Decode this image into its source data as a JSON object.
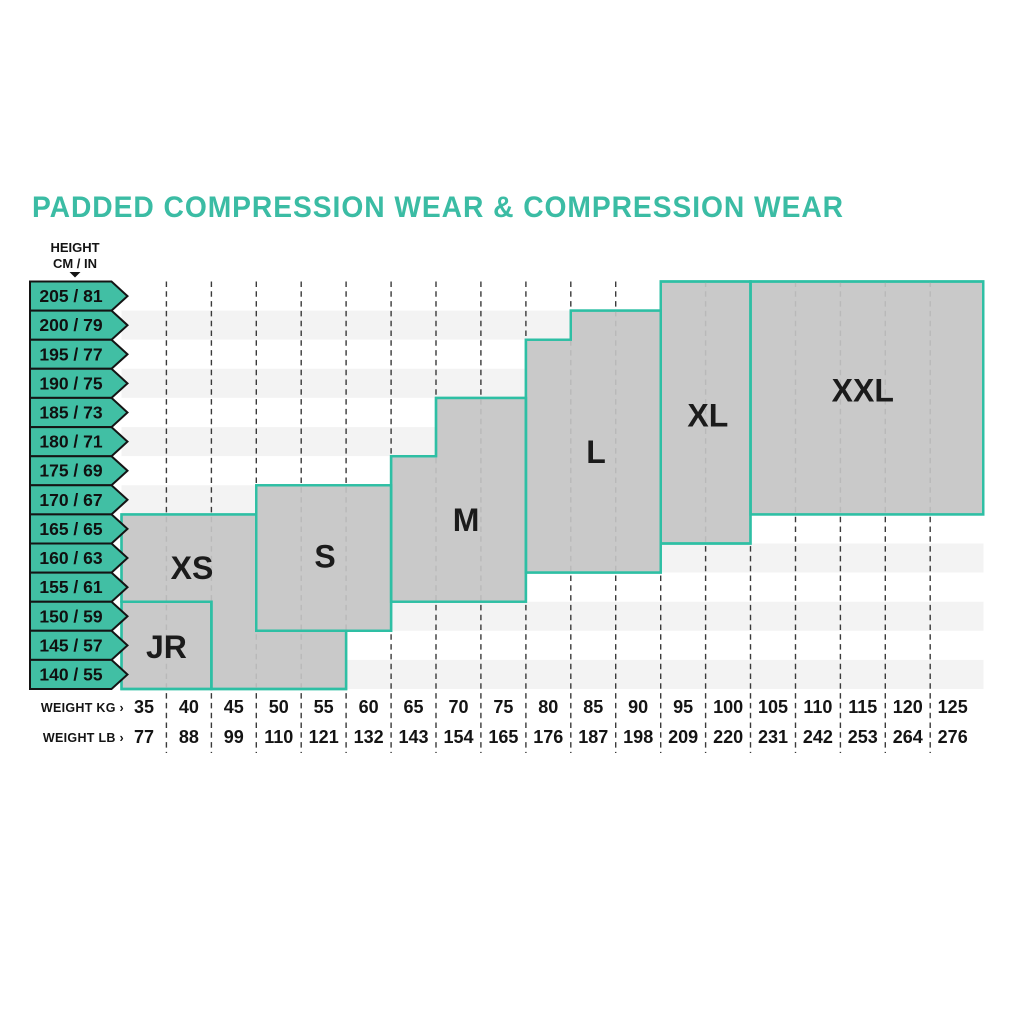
{
  "colors": {
    "teal_border": "#2ebfa4",
    "badge_fill": "#41bfa4",
    "title_teal": "#3bbca4",
    "region_fill": "#c9c9c9",
    "stripe": "#f3f3f3",
    "grid_dark": "#3a3a3a",
    "grid_light": "#b9b9b9",
    "badge_outline": "#141414"
  },
  "chart_data": {
    "type": "size-region-chart",
    "title": "PADDED COMPRESSION WEAR & COMPRESSION WEAR",
    "legend_position": "none",
    "grid": "dashed-vertical",
    "y_axis": {
      "title_line1": "HEIGHT",
      "title_line2": "CM / IN",
      "labels": [
        "205 / 81",
        "200 / 79",
        "195 / 77",
        "190 / 75",
        "185 / 73",
        "180 / 71",
        "175 / 69",
        "170 / 67",
        "165 / 65",
        "160 / 63",
        "155 / 61",
        "150 / 59",
        "145 / 57",
        "140 / 55"
      ]
    },
    "x_axis": {
      "kg_row_label": "WEIGHT KG ›",
      "lb_row_label": "WEIGHT LB ›",
      "kg": [
        35,
        40,
        45,
        50,
        55,
        60,
        65,
        70,
        75,
        80,
        85,
        90,
        95,
        100,
        105,
        110,
        115,
        120,
        125
      ],
      "lb": [
        77,
        88,
        99,
        110,
        121,
        132,
        143,
        154,
        165,
        176,
        187,
        198,
        209,
        220,
        231,
        242,
        253,
        264,
        276
      ]
    },
    "regions": [
      {
        "label": "JR",
        "polygon": [
          [
            0,
            11
          ],
          [
            2,
            11
          ],
          [
            2,
            14
          ],
          [
            0,
            14
          ]
        ],
        "label_at": [
          1.0,
          12.55
        ]
      },
      {
        "label": "XS",
        "polygon": [
          [
            0,
            8
          ],
          [
            3,
            8
          ],
          [
            3,
            12
          ],
          [
            5,
            12
          ],
          [
            5,
            14
          ],
          [
            2,
            14
          ],
          [
            2,
            11
          ],
          [
            0,
            11
          ]
        ],
        "label_at": [
          1.57,
          9.85
        ]
      },
      {
        "label": "S",
        "polygon": [
          [
            3,
            7
          ],
          [
            6,
            7
          ],
          [
            6,
            12
          ],
          [
            3,
            12
          ]
        ],
        "label_at": [
          4.53,
          9.45
        ]
      },
      {
        "label": "M",
        "polygon": [
          [
            6,
            6
          ],
          [
            7,
            6
          ],
          [
            7,
            4
          ],
          [
            9,
            4
          ],
          [
            9,
            11
          ],
          [
            6,
            11
          ]
        ],
        "label_at": [
          7.67,
          8.2
        ]
      },
      {
        "label": "L",
        "polygon": [
          [
            9,
            2
          ],
          [
            10,
            2
          ],
          [
            10,
            1
          ],
          [
            12,
            1
          ],
          [
            12,
            10
          ],
          [
            9,
            10
          ]
        ],
        "label_at": [
          10.56,
          5.85
        ]
      },
      {
        "label": "XL",
        "polygon": [
          [
            12,
            0
          ],
          [
            14,
            0
          ],
          [
            14,
            9
          ],
          [
            12,
            9
          ]
        ],
        "label_at": [
          13.05,
          4.6
        ]
      },
      {
        "label": "XXL",
        "polygon": [
          [
            14,
            0
          ],
          [
            19.18,
            0
          ],
          [
            19.18,
            8
          ],
          [
            14,
            8
          ]
        ],
        "label_at": [
          16.5,
          3.75
        ]
      }
    ]
  }
}
